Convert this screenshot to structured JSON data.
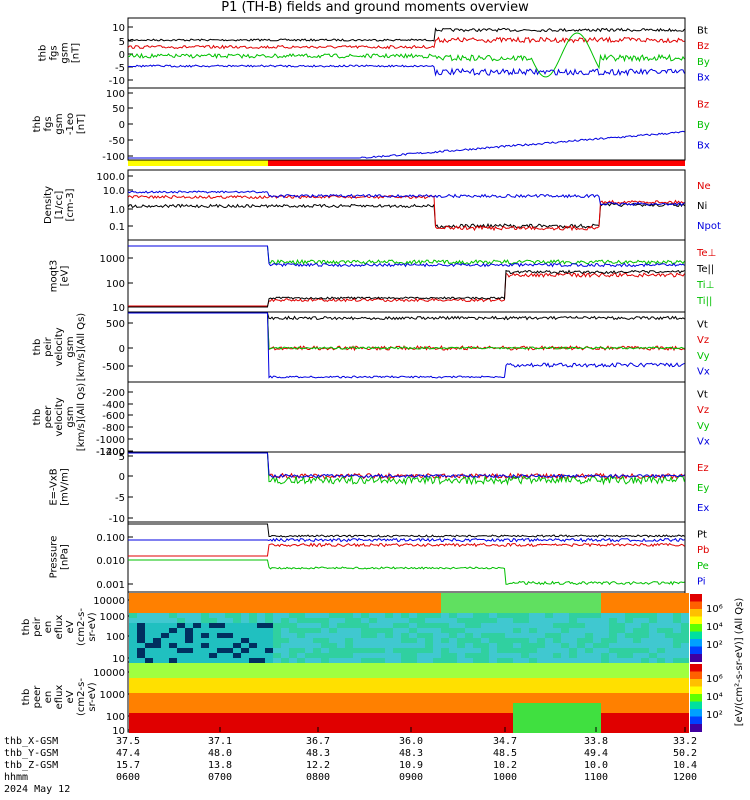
{
  "title": "P1 (TH-B) fields and ground moments overview",
  "date": "2024 May 12",
  "time_labels": [
    "0600",
    "0700",
    "0800",
    "0900",
    "1000",
    "1100",
    "1200"
  ],
  "orbit": {
    "rows": [
      {
        "label": "thb_X-GSM",
        "values": [
          "37.5",
          "37.1",
          "36.7",
          "36.0",
          "34.7",
          "33.8",
          "33.2"
        ]
      },
      {
        "label": "thb_Y-GSM",
        "values": [
          "47.4",
          "48.0",
          "48.3",
          "48.3",
          "48.5",
          "49.4",
          "50.2"
        ]
      },
      {
        "label": "thb_Z-GSM",
        "values": [
          "15.7",
          "13.8",
          "12.2",
          "10.9",
          "10.2",
          "10.0",
          "10.4"
        ]
      },
      {
        "label": "hhmm",
        "values": [
          "0600",
          "0700",
          "0800",
          "0900",
          "1000",
          "1100",
          "1200"
        ]
      }
    ]
  },
  "chart_data": [
    {
      "type": "line",
      "ylabel": "thb\nfgs\ngsm\n[nT]",
      "ylim": [
        -12,
        14
      ],
      "ticks": [
        "10",
        "5",
        "0",
        "-5",
        "-10"
      ],
      "legend": [
        {
          "name": "Bt",
          "color": "#000000"
        },
        {
          "name": "Bz",
          "color": "#e00000"
        },
        {
          "name": "By",
          "color": "#00c000"
        },
        {
          "name": "Bx",
          "color": "#0000e0"
        }
      ]
    },
    {
      "type": "line",
      "ylabel": "thb\nfgs\ngsm\n-1eo\n[nT]",
      "ylim": [
        -130,
        100
      ],
      "ticks": [
        "100",
        "50",
        "0",
        "-50",
        "-100"
      ],
      "legend": [
        {
          "name": "Bz",
          "color": "#e00000"
        },
        {
          "name": "By",
          "color": "#00c000"
        },
        {
          "name": "Bx",
          "color": "#0000e0"
        }
      ]
    },
    {
      "type": "line",
      "ylabel": "Density\n[1/cc]\n[cm-3]",
      "scale": "log",
      "ticks": [
        "100.0",
        "10.0",
        "1.0",
        "0.1"
      ],
      "legend": [
        {
          "name": "Ne",
          "color": "#e00000"
        },
        {
          "name": "Ni",
          "color": "#000000"
        },
        {
          "name": "Npot",
          "color": "#0000e0"
        }
      ]
    },
    {
      "type": "line",
      "ylabel": "moqt3\n[eV]",
      "scale": "log",
      "ticks": [
        "1000",
        "100",
        "10"
      ],
      "legend": [
        {
          "name": "Te⊥",
          "color": "#e00000"
        },
        {
          "name": "Te||",
          "color": "#000000"
        },
        {
          "name": "Ti⊥",
          "color": "#00c000"
        },
        {
          "name": "Ti||",
          "color": "#00c000"
        }
      ]
    },
    {
      "type": "line",
      "ylabel": "thb\npeir\nvelocity\ngsm\n[km/s](All Qs)",
      "ylim": [
        -800,
        900
      ],
      "ticks": [
        "500",
        "0",
        "-500"
      ],
      "legend": [
        {
          "name": "Vt",
          "color": "#000000"
        },
        {
          "name": "Vz",
          "color": "#e00000"
        },
        {
          "name": "Vy",
          "color": "#00c000"
        },
        {
          "name": "Vx",
          "color": "#0000e0"
        }
      ]
    },
    {
      "type": "line",
      "ylabel": "thb\npeer\nvelocity\ngsm\n[km/s](All Qs)",
      "ylim": [
        -1450,
        0
      ],
      "ticks": [
        "-200",
        "-400",
        "-600",
        "-800",
        "-1000",
        "-1200",
        "-1400"
      ],
      "legend": [
        {
          "name": "Vt",
          "color": "#000000"
        },
        {
          "name": "Vz",
          "color": "#e00000"
        },
        {
          "name": "Vy",
          "color": "#00c000"
        },
        {
          "name": "Vx",
          "color": "#0000e0"
        }
      ]
    },
    {
      "type": "line",
      "ylabel": "E=-VxB\n[mV/m]",
      "ylim": [
        -11,
        8
      ],
      "ticks": [
        "5",
        "0",
        "-5",
        "-10"
      ],
      "legend": [
        {
          "name": "Ez",
          "color": "#e00000"
        },
        {
          "name": "Ey",
          "color": "#00c000"
        },
        {
          "name": "Ex",
          "color": "#0000e0"
        }
      ]
    },
    {
      "type": "line",
      "ylabel": "Pressure\n[nPa]",
      "scale": "log",
      "ticks": [
        "0.100",
        "0.010",
        "0.001"
      ],
      "legend": [
        {
          "name": "Pt",
          "color": "#000000"
        },
        {
          "name": "Pb",
          "color": "#e00000"
        },
        {
          "name": "Pe",
          "color": "#00c000"
        },
        {
          "name": "Pi",
          "color": "#0000e0"
        }
      ]
    },
    {
      "type": "heatmap",
      "ylabel": "thb\npeir\nen\neflux\neV\n(cm2-s-\nsr-eV)",
      "scale": "log",
      "ticks": [
        "10000",
        "1000",
        "100",
        "10"
      ]
    },
    {
      "type": "heatmap",
      "ylabel": "thb\npeer\nen\neflux\neV\n(cm2-s-\nsr-eV)",
      "scale": "log",
      "ticks": [
        "10000",
        "1000",
        "100",
        "10"
      ]
    }
  ],
  "colorbar": {
    "ticks": [
      "10⁶",
      "10⁴",
      "10²"
    ],
    "label": "[eV/(cm²-s-sr-eV)] (All Qs)"
  },
  "colors": {
    "bx": "#0000e0",
    "by": "#00c000",
    "bz": "#e00000",
    "bt": "#000000",
    "status_yellow": "#ffff00",
    "status_red": "#ff0000"
  }
}
